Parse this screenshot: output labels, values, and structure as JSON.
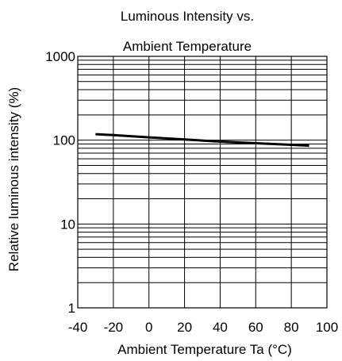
{
  "chart_data": {
    "type": "line",
    "title_lines": [
      "Luminous Intensity vs.",
      "Ambient Temperature"
    ],
    "xlabel": "Ambient Temperature Ta (°C)",
    "ylabel": "Relative luminous intensity (%)",
    "x_ticks": [
      "-40",
      "-20",
      "0",
      "20",
      "40",
      "60",
      "80",
      "100"
    ],
    "y_ticks": [
      "1",
      "10",
      "100",
      "1000"
    ],
    "xlim": [
      -40,
      100
    ],
    "ylim": [
      1,
      1000
    ],
    "y_scale": "log",
    "grid": true,
    "series": [
      {
        "x": [
          -30,
          -20,
          0,
          20,
          40,
          60,
          80,
          90
        ],
        "y": [
          118,
          115,
          108,
          102,
          96,
          92,
          88,
          86
        ]
      }
    ]
  }
}
